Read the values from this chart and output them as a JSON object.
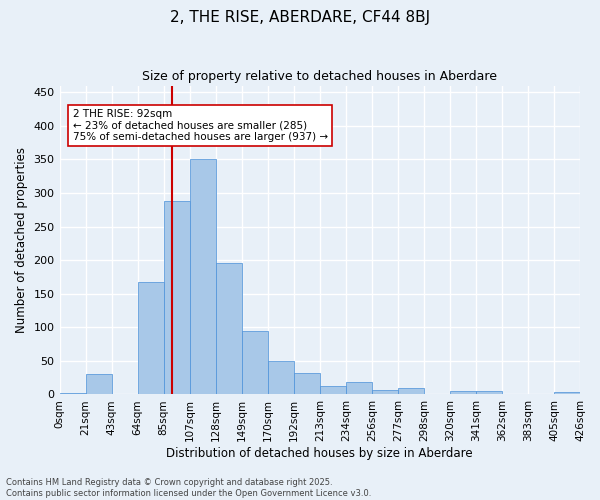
{
  "title": "2, THE RISE, ABERDARE, CF44 8BJ",
  "subtitle": "Size of property relative to detached houses in Aberdare",
  "xlabel": "Distribution of detached houses by size in Aberdare",
  "ylabel": "Number of detached properties",
  "bin_labels": [
    "0sqm",
    "21sqm",
    "43sqm",
    "64sqm",
    "85sqm",
    "107sqm",
    "128sqm",
    "149sqm",
    "170sqm",
    "192sqm",
    "213sqm",
    "234sqm",
    "256sqm",
    "277sqm",
    "298sqm",
    "320sqm",
    "341sqm",
    "362sqm",
    "383sqm",
    "405sqm",
    "426sqm"
  ],
  "bar_heights": [
    2,
    30,
    0,
    168,
    288,
    350,
    196,
    94,
    50,
    32,
    13,
    18,
    7,
    10,
    0,
    5,
    5,
    1,
    0,
    3
  ],
  "bar_color": "#a8c8e8",
  "bar_edge_color": "#4a90d9",
  "background_color": "#e8f0f8",
  "grid_color": "#ffffff",
  "vline_color": "#cc0000",
  "annotation_text": "2 THE RISE: 92sqm\n← 23% of detached houses are smaller (285)\n75% of semi-detached houses are larger (937) →",
  "annotation_box_color": "#ffffff",
  "annotation_box_edge": "#cc0000",
  "ylim": [
    0,
    460
  ],
  "yticks": [
    0,
    50,
    100,
    150,
    200,
    250,
    300,
    350,
    400,
    450
  ],
  "footer_line1": "Contains HM Land Registry data © Crown copyright and database right 2025.",
  "footer_line2": "Contains public sector information licensed under the Open Government Licence v3.0.",
  "figsize": [
    6.0,
    5.0
  ],
  "dpi": 100
}
